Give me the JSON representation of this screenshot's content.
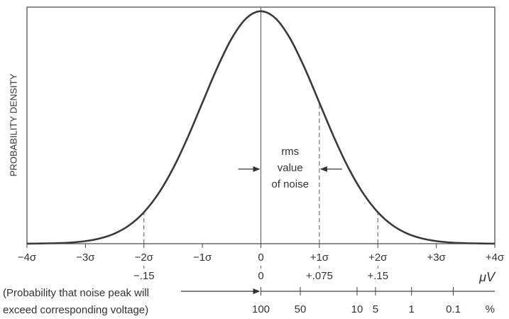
{
  "chart_data": {
    "type": "line",
    "y_label": "PROBABILITY DENSITY",
    "xlim": [
      -4,
      4
    ],
    "ylim": [
      0,
      0.406
    ],
    "xticks": [
      {
        "value": -4,
        "label": "−4σ"
      },
      {
        "value": -3,
        "label": "−3σ"
      },
      {
        "value": -2,
        "label": "−2σ"
      },
      {
        "value": -1,
        "label": "−1σ"
      },
      {
        "value": 0,
        "label": "0"
      },
      {
        "value": 1,
        "label": "+1σ"
      },
      {
        "value": 2,
        "label": "+2σ"
      },
      {
        "value": 3,
        "label": "+3σ"
      },
      {
        "value": 4,
        "label": "+4σ"
      }
    ],
    "series": [
      {
        "color": "#3a3a3a",
        "x": [
          -4,
          -3.75,
          -3.5,
          -3.25,
          -3,
          -2.75,
          -2.5,
          -2.25,
          -2,
          -1.75,
          -1.5,
          -1.25,
          -1,
          -0.75,
          -0.5,
          -0.25,
          0,
          0.25,
          0.5,
          0.75,
          1,
          1.25,
          1.5,
          1.75,
          2,
          2.25,
          2.5,
          2.75,
          3,
          3.25,
          3.5,
          3.75,
          4
        ],
        "values": [
          0.0001,
          0.0004,
          0.0009,
          0.002,
          0.0044,
          0.0091,
          0.0175,
          0.0317,
          0.054,
          0.0863,
          0.1295,
          0.1826,
          0.242,
          0.3011,
          0.3521,
          0.3867,
          0.3989,
          0.3867,
          0.3521,
          0.3011,
          0.242,
          0.1826,
          0.1295,
          0.0863,
          0.054,
          0.0317,
          0.0175,
          0.0091,
          0.0044,
          0.002,
          0.0009,
          0.0004,
          0.0001
        ]
      }
    ],
    "markers": [
      {
        "x": -2,
        "y": 0.054
      },
      {
        "x": 1,
        "y": 0.242
      },
      {
        "x": 2,
        "y": 0.054
      }
    ],
    "annotation": [
      "rms",
      "value",
      "of noise"
    ],
    "annotation_span": [
      0,
      1
    ],
    "voltage_labels": [
      {
        "value": -2,
        "label": "−.15"
      },
      {
        "value": 0,
        "label": "0"
      },
      {
        "value": 1,
        "label": "+.075"
      },
      {
        "value": 2,
        "label": "+.15"
      }
    ],
    "voltage_unit": "μV",
    "probability_caption": [
      "(Probability that noise peak will",
      "exceed corresponding voltage)"
    ],
    "probability_ticks": [
      {
        "value": 0,
        "label": "100"
      },
      {
        "value": 0.674,
        "label": "50"
      },
      {
        "value": 1.645,
        "label": "10"
      },
      {
        "value": 1.96,
        "label": "5"
      },
      {
        "value": 2.576,
        "label": "1"
      },
      {
        "value": 3.29,
        "label": "0.1"
      }
    ],
    "probability_unit": "%"
  }
}
